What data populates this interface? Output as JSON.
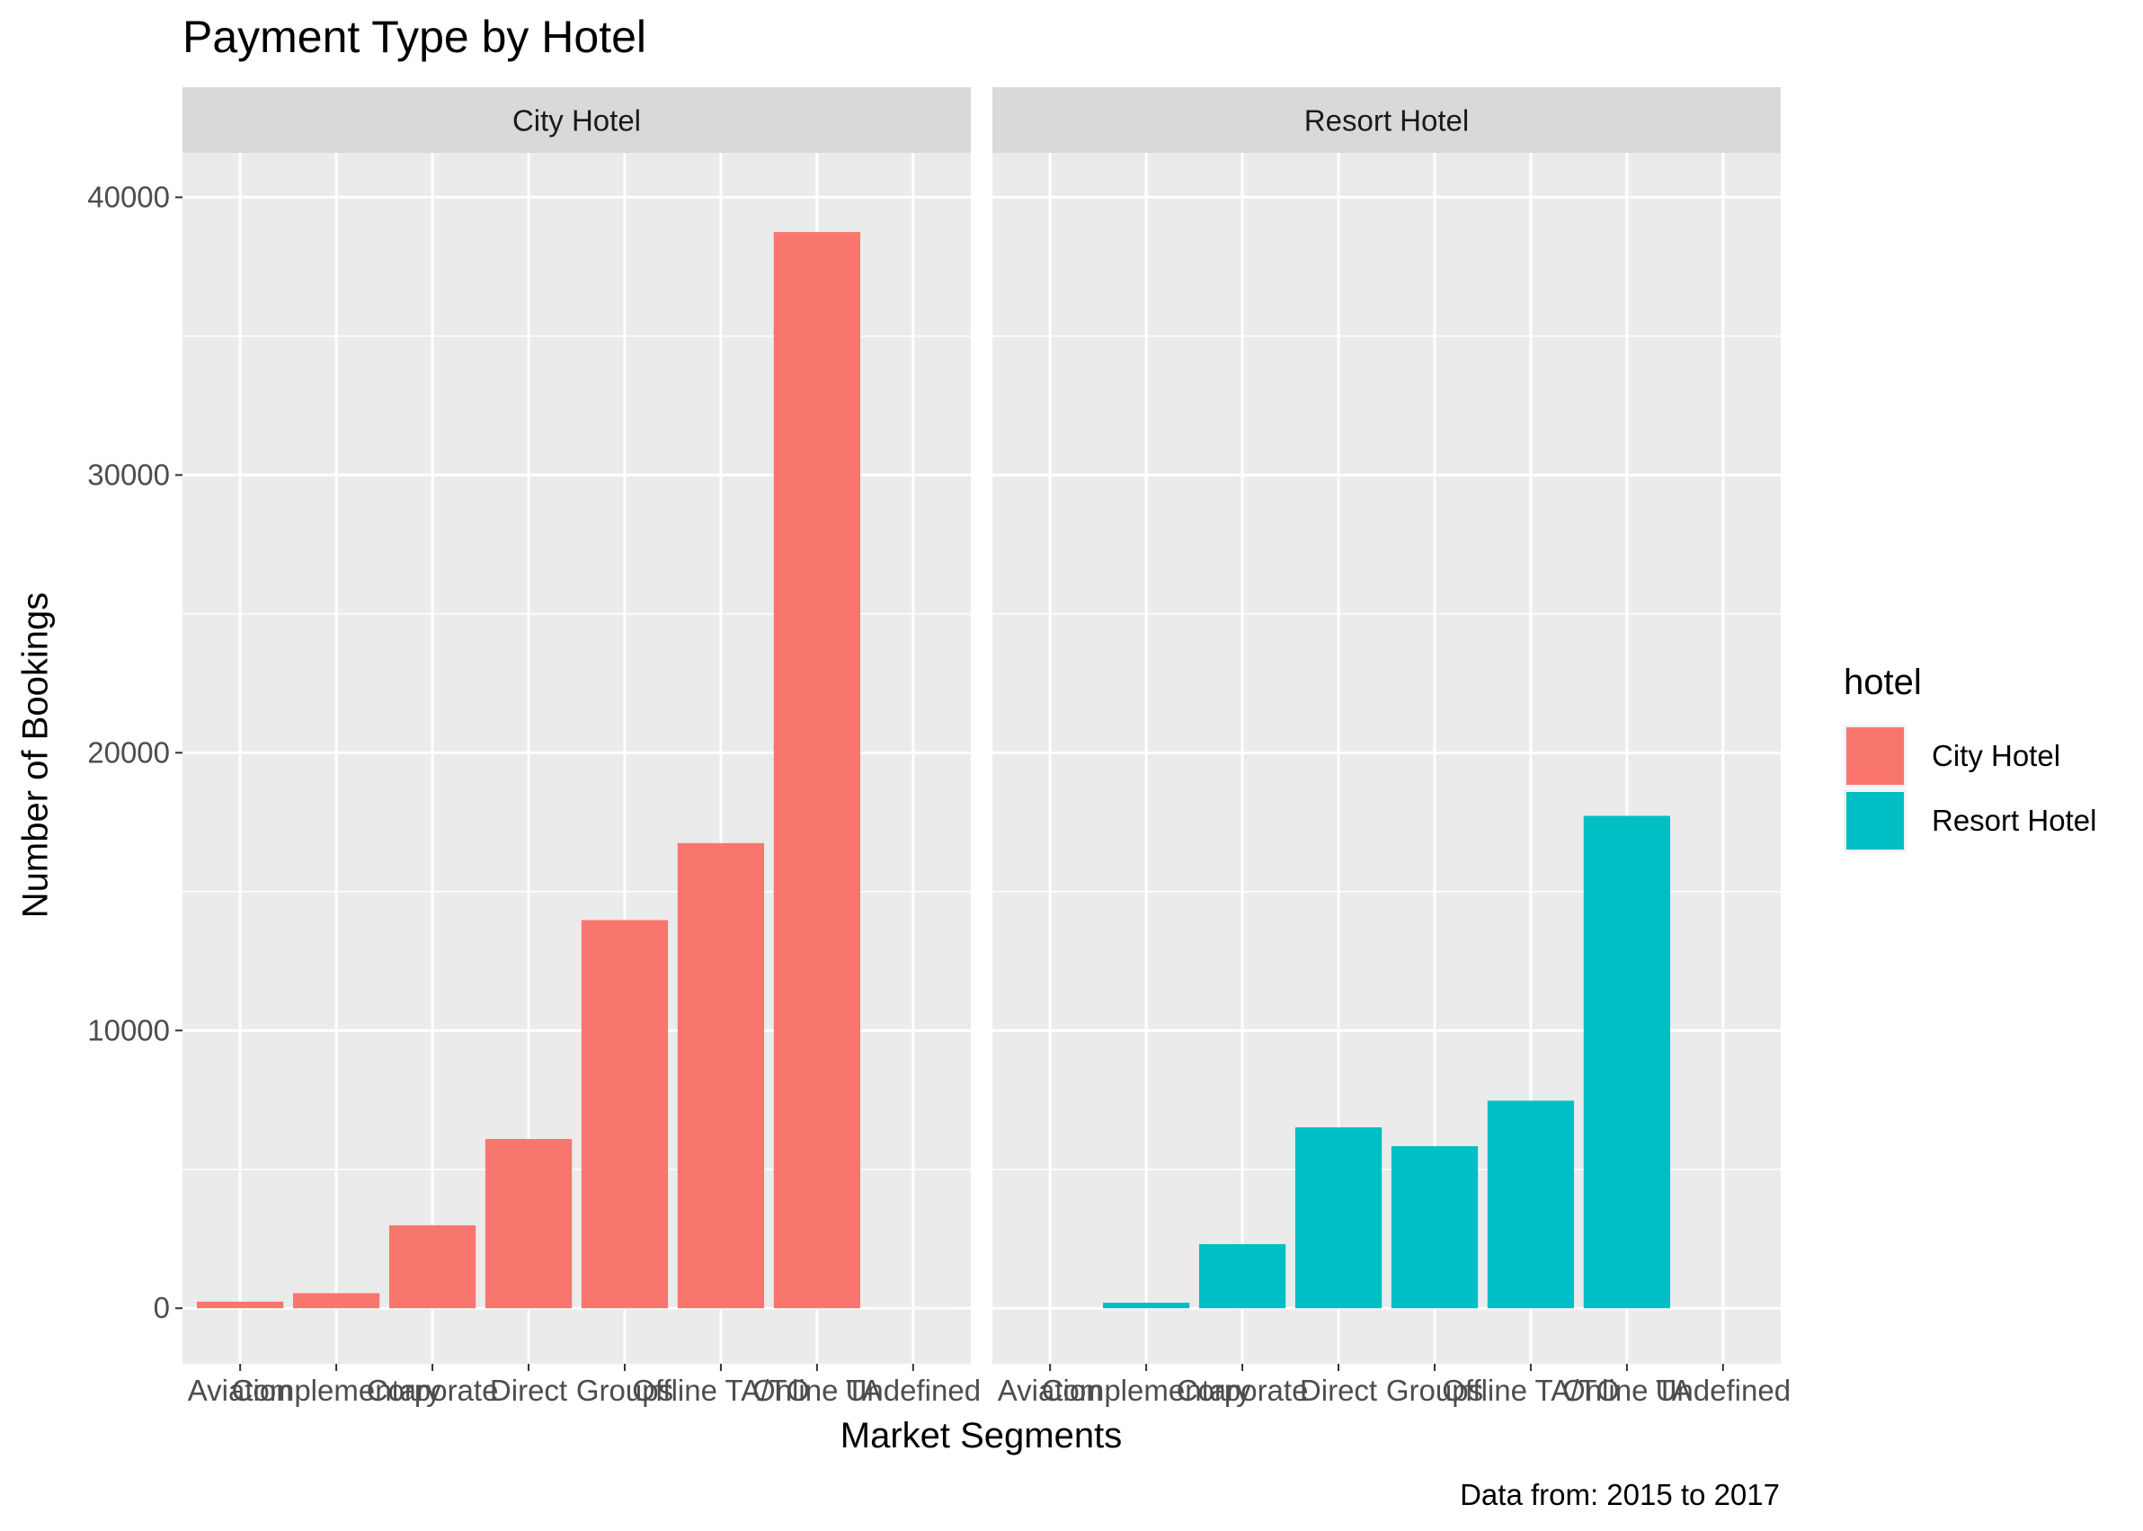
{
  "chart_data": {
    "type": "bar",
    "title": "Payment Type by Hotel",
    "xlabel": "Market Segments",
    "ylabel": "Number of Bookings",
    "caption": "Data from: 2015 to 2017",
    "categories": [
      "Aviation",
      "Complementary",
      "Corporate",
      "Direct",
      "Groups",
      "Offline TA/TO",
      "Online TA",
      "Undefined"
    ],
    "yticks": [
      0,
      10000,
      20000,
      30000,
      40000
    ],
    "ylim": [
      -2000,
      41600
    ],
    "legend_position": "right",
    "legend_title": "hotel",
    "grid": true,
    "facets": [
      {
        "label": "City Hotel",
        "color": "#F8766D",
        "values": [
          237,
          542,
          2986,
          6093,
          13975,
          16747,
          38748,
          2
        ]
      },
      {
        "label": "Resort Hotel",
        "color": "#00BFC4",
        "values": [
          0,
          201,
          2309,
          6513,
          5836,
          7472,
          17729,
          0
        ]
      }
    ],
    "legend": [
      {
        "label": "City Hotel",
        "color": "#F8766D"
      },
      {
        "label": "Resort Hotel",
        "color": "#00BFC4"
      }
    ]
  }
}
